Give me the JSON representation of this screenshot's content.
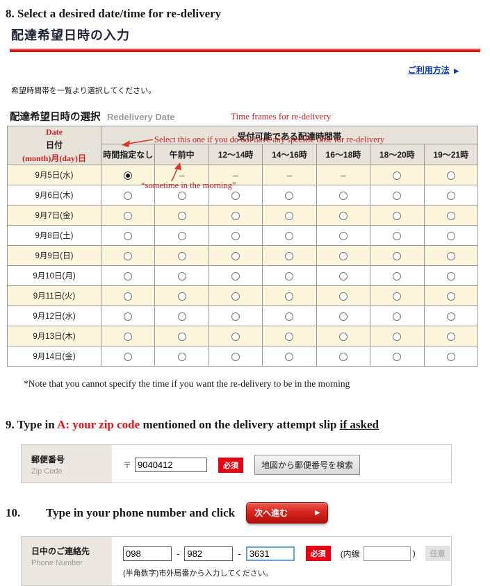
{
  "step8": {
    "number": "8.",
    "title": "Select a desired date/time for re-delivery",
    "subtitle_jp": "配達希望日時の入力",
    "usage_link": "ご利用方法",
    "usage_link_arrow": "▶",
    "instruction": "希望時間帯を一覧より選択してください。",
    "section_label_jp": "配達希望日時の選択",
    "section_label_en": "Redelivery Date",
    "annotation_timeframes": "Time frames for re-delivery",
    "annotation_select_this": "Select this one if you do not have any specific time for re-delivery",
    "annotation_morning": "“sometime in the morning”",
    "note": "*Note that you cannot specify the time if you want the re-delivery to be in the morning"
  },
  "table": {
    "date_header": {
      "en": "Date",
      "jp": "日付",
      "format": "(month)月(day)日"
    },
    "time_band_header": "受付可能である配達時間帯",
    "columns": [
      "時間指定なし",
      "午前中",
      "12〜14時",
      "14〜16時",
      "16〜18時",
      "18〜20時",
      "19〜21時"
    ],
    "dash": "–",
    "rows": [
      {
        "date": "9月5日(水)",
        "cells": [
          "selected",
          "dash",
          "dash",
          "dash",
          "dash",
          "radio",
          "radio"
        ]
      },
      {
        "date": "9月6日(木)",
        "cells": [
          "radio",
          "radio",
          "radio",
          "radio",
          "radio",
          "radio",
          "radio"
        ]
      },
      {
        "date": "9月7日(金)",
        "cells": [
          "radio",
          "radio",
          "radio",
          "radio",
          "radio",
          "radio",
          "radio"
        ]
      },
      {
        "date": "9月8日(土)",
        "cells": [
          "radio",
          "radio",
          "radio",
          "radio",
          "radio",
          "radio",
          "radio"
        ]
      },
      {
        "date": "9月9日(日)",
        "cells": [
          "radio",
          "radio",
          "radio",
          "radio",
          "radio",
          "radio",
          "radio"
        ]
      },
      {
        "date": "9月10日(月)",
        "cells": [
          "radio",
          "radio",
          "radio",
          "radio",
          "radio",
          "radio",
          "radio"
        ]
      },
      {
        "date": "9月11日(火)",
        "cells": [
          "radio",
          "radio",
          "radio",
          "radio",
          "radio",
          "radio",
          "radio"
        ]
      },
      {
        "date": "9月12日(水)",
        "cells": [
          "radio",
          "radio",
          "radio",
          "radio",
          "radio",
          "radio",
          "radio"
        ]
      },
      {
        "date": "9月13日(木)",
        "cells": [
          "radio",
          "radio",
          "radio",
          "radio",
          "radio",
          "radio",
          "radio"
        ]
      },
      {
        "date": "9月14日(金)",
        "cells": [
          "radio",
          "radio",
          "radio",
          "radio",
          "radio",
          "radio",
          "radio"
        ]
      }
    ]
  },
  "step9": {
    "number": "9.",
    "title_pre": "Type in ",
    "title_highlight": "A: your zip code",
    "title_mid": " mentioned on the delivery attempt slip ",
    "title_underlined": "if asked",
    "form": {
      "label_jp": "郵便番号",
      "label_en": "Zip Code",
      "postal_mark": "〒",
      "zip_value": "9040412",
      "required_badge": "必須",
      "search_button": "地図から郵便番号を検索"
    }
  },
  "step10": {
    "number": "10.",
    "title": "Type in your phone number and click",
    "next_button": "次へ進む",
    "next_button_arrow": "▶",
    "form": {
      "label_jp": "日中のご連絡先",
      "label_en": "Phone Number",
      "phone1": "098",
      "phone2": "982",
      "phone3": "3631",
      "separator": "-",
      "required_badge": "必須",
      "extension_prefix": "(内線",
      "extension_suffix": ")",
      "extension_value": "",
      "optional_badge": "任意",
      "note": "(半角数字)市外局番から入力してください。"
    }
  },
  "colors": {
    "accent_red": "#e3201b",
    "annotation_red": "#cc1f1f",
    "required_badge_bg": "#e60012",
    "link_blue": "#0b3bb0",
    "row_beige": "#fdf5dc",
    "header_gray": "#e7e3da"
  }
}
